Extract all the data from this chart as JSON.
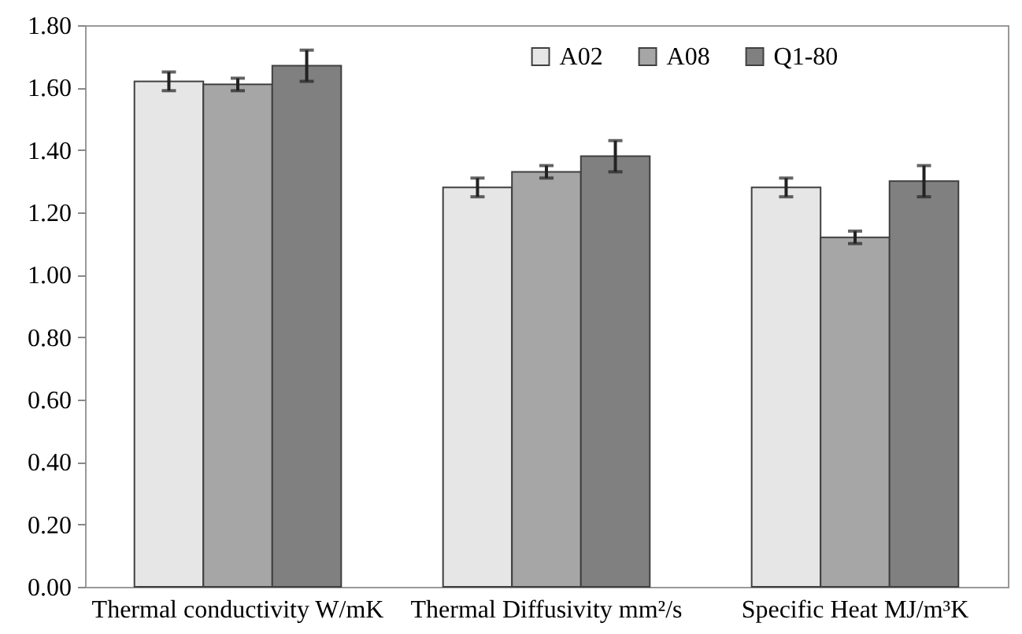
{
  "chart_data": {
    "type": "bar",
    "categories": [
      "Thermal conductivity W/mK",
      "Thermal Diffusivity mm²/s",
      "Specific Heat MJ/m³K"
    ],
    "series": [
      {
        "name": "A02",
        "color": "#e6e6e6",
        "values": [
          1.62,
          1.28,
          1.28
        ],
        "errors": [
          0.03,
          0.03,
          0.03
        ]
      },
      {
        "name": "A08",
        "color": "#a6a6a6",
        "values": [
          1.61,
          1.33,
          1.12
        ],
        "errors": [
          0.02,
          0.02,
          0.02
        ]
      },
      {
        "name": "Q1-80",
        "color": "#808080",
        "values": [
          1.67,
          1.38,
          1.3
        ],
        "errors": [
          0.05,
          0.05,
          0.05
        ]
      }
    ],
    "ylim": [
      0,
      1.8
    ],
    "yticks": [
      {
        "value": 0,
        "label": "0.00"
      },
      {
        "value": 0.2,
        "label": "0.20"
      },
      {
        "value": 0.4,
        "label": "0.40"
      },
      {
        "value": 0.6,
        "label": "0.60"
      },
      {
        "value": 0.8,
        "label": "0.80"
      },
      {
        "value": 1.0,
        "label": "1.00"
      },
      {
        "value": 1.2,
        "label": "1.20"
      },
      {
        "value": 1.4,
        "label": "1.40"
      },
      {
        "value": 1.6,
        "label": "1.60"
      },
      {
        "value": 1.8,
        "label": "1.80"
      }
    ],
    "grid": false,
    "legend": "top"
  }
}
